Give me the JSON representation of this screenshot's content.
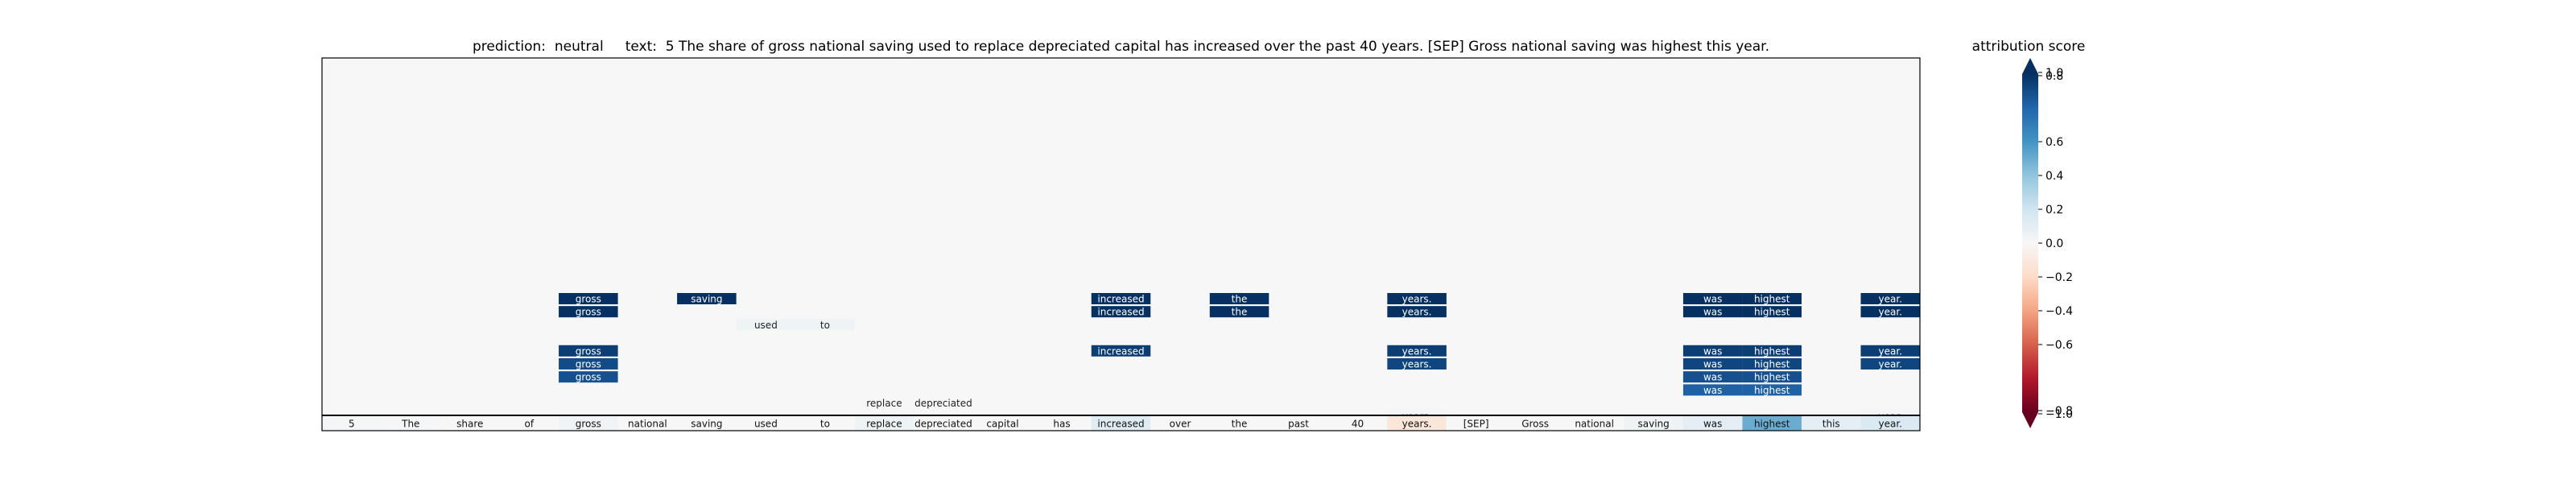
{
  "chart_data": {
    "type": "heatmap",
    "title_prefix": "prediction:",
    "prediction": "neutral",
    "text_prefix": "text:",
    "text": "5 The share of gross national saving used to replace depreciated capital has increased over the past 40 years. [SEP] Gross national saving was highest this year.",
    "tokens": [
      "5",
      "The",
      "share",
      "of",
      "gross",
      "national",
      "saving",
      "used",
      "to",
      "replace",
      "depreciated",
      "capital",
      "has",
      "increased",
      "over",
      "the",
      "past",
      "40",
      "years.",
      "[SEP]",
      "Gross",
      "national",
      "saving",
      "was",
      "highest",
      "this",
      "year."
    ],
    "token_row_scores": [
      0.02,
      0.01,
      0.0,
      0.0,
      0.03,
      0.0,
      0.0,
      0.0,
      0.0,
      0.05,
      0.0,
      0.0,
      0.0,
      0.12,
      0.0,
      0.0,
      0.0,
      0.0,
      -0.12,
      0.0,
      0.0,
      0.0,
      0.05,
      0.1,
      0.5,
      0.1,
      0.15
    ],
    "attention_cells": [
      {
        "row": 1,
        "col": 4,
        "label": "gross",
        "value": 1.0
      },
      {
        "row": 2,
        "col": 4,
        "label": "gross",
        "value": 1.0
      },
      {
        "row": 1,
        "col": 6,
        "label": "saving",
        "value": 1.0
      },
      {
        "row": 1,
        "col": 13,
        "label": "increased",
        "value": 1.0
      },
      {
        "row": 2,
        "col": 13,
        "label": "increased",
        "value": 1.0
      },
      {
        "row": 1,
        "col": 15,
        "label": "the",
        "value": 1.0
      },
      {
        "row": 2,
        "col": 15,
        "label": "the",
        "value": 1.0
      },
      {
        "row": 1,
        "col": 18,
        "label": "years.",
        "value": 1.0
      },
      {
        "row": 2,
        "col": 18,
        "label": "years.",
        "value": 1.0
      },
      {
        "row": 1,
        "col": 23,
        "label": "was",
        "value": 1.0
      },
      {
        "row": 2,
        "col": 23,
        "label": "was",
        "value": 1.0
      },
      {
        "row": 1,
        "col": 24,
        "label": "highest",
        "value": 1.0
      },
      {
        "row": 2,
        "col": 24,
        "label": "highest",
        "value": 1.0
      },
      {
        "row": 1,
        "col": 26,
        "label": "year.",
        "value": 1.0
      },
      {
        "row": 2,
        "col": 26,
        "label": "year.",
        "value": 1.0
      },
      {
        "row": 3,
        "col": 7,
        "label": "used",
        "value": 0.05
      },
      {
        "row": 3,
        "col": 8,
        "label": "to",
        "value": 0.05
      },
      {
        "row": 5,
        "col": 4,
        "label": "gross",
        "value": 0.95
      },
      {
        "row": 6,
        "col": 4,
        "label": "gross",
        "value": 0.9
      },
      {
        "row": 7,
        "col": 4,
        "label": "gross",
        "value": 0.88
      },
      {
        "row": 5,
        "col": 13,
        "label": "increased",
        "value": 0.95
      },
      {
        "row": 5,
        "col": 18,
        "label": "years.",
        "value": 0.95
      },
      {
        "row": 6,
        "col": 18,
        "label": "years.",
        "value": 0.92
      },
      {
        "row": 5,
        "col": 23,
        "label": "was",
        "value": 0.95
      },
      {
        "row": 6,
        "col": 23,
        "label": "was",
        "value": 0.92
      },
      {
        "row": 7,
        "col": 23,
        "label": "was",
        "value": 0.88
      },
      {
        "row": 8,
        "col": 23,
        "label": "was",
        "value": 0.82
      },
      {
        "row": 5,
        "col": 24,
        "label": "highest",
        "value": 0.95
      },
      {
        "row": 6,
        "col": 24,
        "label": "highest",
        "value": 0.92
      },
      {
        "row": 7,
        "col": 24,
        "label": "highest",
        "value": 0.88
      },
      {
        "row": 8,
        "col": 24,
        "label": "highest",
        "value": 0.82
      },
      {
        "row": 5,
        "col": 26,
        "label": "year.",
        "value": 0.95
      },
      {
        "row": 6,
        "col": 26,
        "label": "year.",
        "value": 0.92
      },
      {
        "row": 9,
        "col": 9,
        "label": "replace",
        "value": 0.0
      },
      {
        "row": 9,
        "col": 10,
        "label": "depreciated",
        "value": 0.0
      },
      {
        "row": 10,
        "col": 18,
        "label": "years.",
        "value": 0.02
      },
      {
        "row": 10,
        "col": 26,
        "label": "year.",
        "value": 0.02
      }
    ],
    "colorbar": {
      "title": "attribution score",
      "range": [
        -1.0,
        1.0
      ],
      "ticks": [
        -1.0,
        -0.8,
        -0.6,
        -0.4,
        -0.2,
        0.0,
        0.2,
        0.4,
        0.6,
        0.8,
        1.0
      ],
      "tick_labels": [
        "−1.0",
        "−0.8",
        "−0.6",
        "−0.4",
        "−0.2",
        "0.0",
        "0.2",
        "0.4",
        "0.6",
        "0.8",
        "1.0"
      ],
      "colormap": "RdBu"
    },
    "colors": {
      "background": "#f7f7f7",
      "neg_strong": "#67001f",
      "pos_strong": "#053061"
    }
  }
}
